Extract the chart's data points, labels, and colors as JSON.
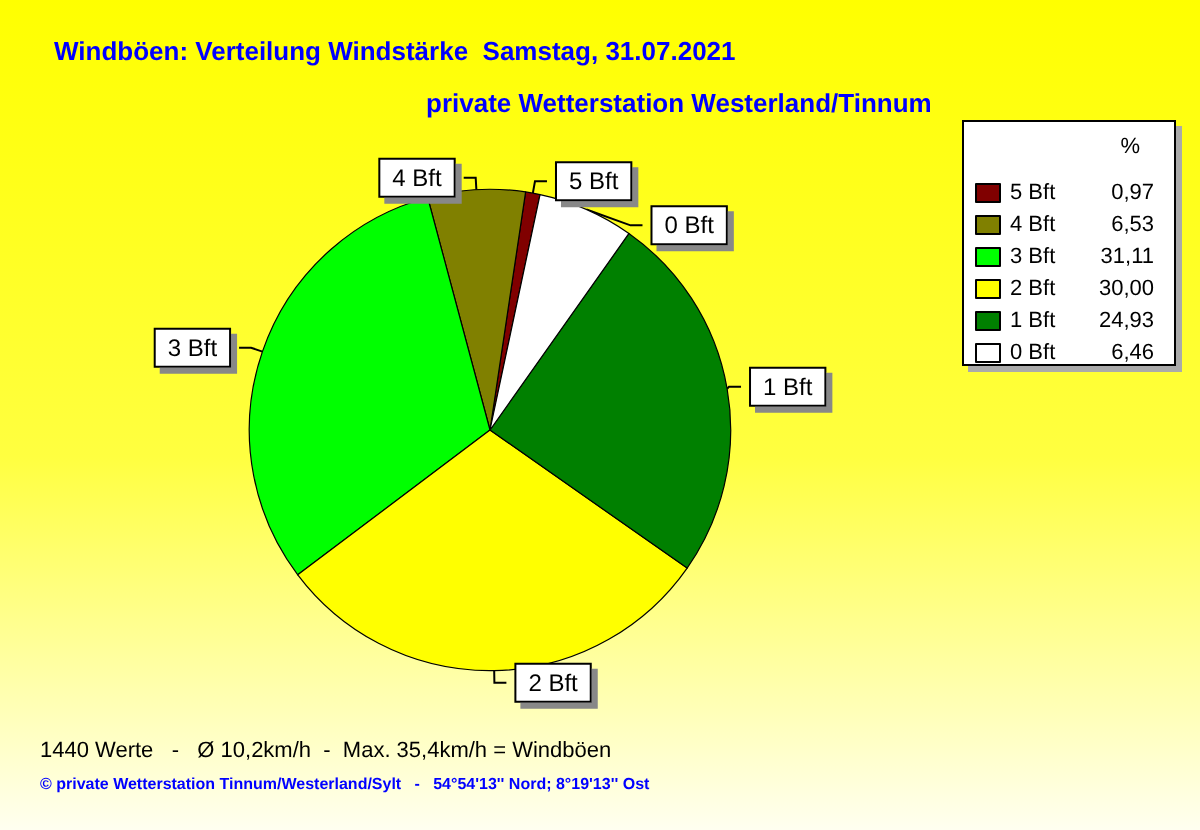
{
  "chart_data": {
    "type": "pie",
    "title": "Windböen: Verteilung Windstärke  Samstag, 31.07.2021",
    "subtitle": "private Wetterstation Westerland/Tinnum",
    "categories": [
      "5 Bft",
      "4 Bft",
      "3 Bft",
      "2 Bft",
      "1 Bft",
      "0 Bft"
    ],
    "values": [
      0.97,
      6.53,
      31.11,
      30.0,
      24.93,
      6.46
    ],
    "value_labels": [
      "0,97",
      "6,53",
      "31,11",
      "30,00",
      "24,93",
      "6,46"
    ],
    "colors": [
      "#800000",
      "#808000",
      "#00ff00",
      "#ffff00",
      "#008000",
      "#ffffff"
    ],
    "legend": "top right",
    "legend_title": "%",
    "annotations": [
      "1440 Werte   -   Ø 10,2km/h  -  Max. 35,4km/h = Windböen",
      "© private Wetterstation Tinnum/Westerland/Sylt   -   54°54'13'' Nord; 8°19'13'' Ost"
    ]
  }
}
